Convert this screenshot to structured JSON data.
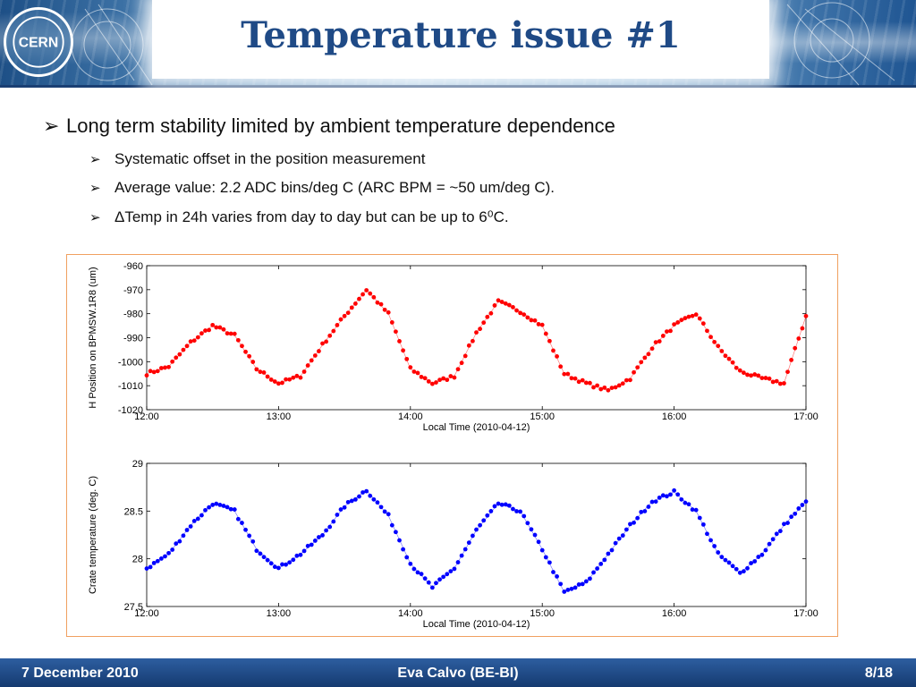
{
  "slide": {
    "title": "Temperature issue #1",
    "logo_text": "CERN",
    "bullets": [
      "Long term stability limited by ambient temperature dependence",
      "Systematic offset in the position measurement",
      "Average value: 2.2 ADC bins/deg C (ARC BPM = ~50 um/deg C).",
      "ΔTemp in 24h varies from day to day but can be up to 6⁰C."
    ],
    "bullet_icon": "arrow-bullet-icon"
  },
  "footer": {
    "date": "7 December 2010",
    "author": "Eva Calvo (BE-BI)",
    "page": "8/18"
  },
  "colors": {
    "title": "#1f4a86",
    "header_blue": "#1d4f86",
    "footer_blue": "#2d5ea0",
    "frame_border": "#f0a060",
    "series_top": "#ff0000",
    "series_bottom": "#0000ff"
  },
  "chart_data": [
    {
      "type": "scatter",
      "ylabel": "H Position on BPMSW.1R8 (um)",
      "xlabel": "Local Time (2010-04-12)",
      "xlim": [
        "12:00",
        "17:00"
      ],
      "ylim": [
        -1020,
        -960
      ],
      "xticks": [
        "12:00",
        "13:00",
        "14:00",
        "15:00",
        "16:00",
        "17:00"
      ],
      "yticks": [
        "-960",
        "-970",
        "-980",
        "-990",
        "-1000",
        "-1010",
        "-1020"
      ],
      "ytick_values": [
        -960,
        -970,
        -980,
        -990,
        -1000,
        -1010,
        -1020
      ],
      "grid": false,
      "series": [
        {
          "color": "#ff0000",
          "x": [
            "12:00",
            "12:10",
            "12:20",
            "12:30",
            "12:40",
            "12:50",
            "13:00",
            "13:10",
            "13:20",
            "13:30",
            "13:40",
            "13:50",
            "14:00",
            "14:10",
            "14:20",
            "14:30",
            "14:40",
            "14:50",
            "15:00",
            "15:10",
            "15:20",
            "15:30",
            "15:40",
            "15:50",
            "16:00",
            "16:10",
            "16:20",
            "16:30",
            "16:40",
            "16:50",
            "17:00"
          ],
          "values": [
            -1005,
            -1002,
            -992,
            -985,
            -989,
            -1003,
            -1009,
            -1006,
            -993,
            -981,
            -970,
            -980,
            -1003,
            -1009,
            -1006,
            -988,
            -975,
            -979,
            -985,
            -1005,
            -1009,
            -1012,
            -1007,
            -994,
            -985,
            -980,
            -994,
            -1004,
            -1007,
            -1009,
            -981
          ]
        }
      ]
    },
    {
      "type": "scatter",
      "ylabel": "Crate temperature (deg. C)",
      "xlabel": "Local Time (2010-04-12)",
      "xlim": [
        "12:00",
        "17:00"
      ],
      "ylim": [
        27.5,
        29
      ],
      "xticks": [
        "12:00",
        "13:00",
        "14:00",
        "15:00",
        "16:00",
        "17:00"
      ],
      "yticks": [
        "29",
        "28.5",
        "28",
        "27.5"
      ],
      "ytick_values": [
        29,
        28.5,
        28,
        27.5
      ],
      "grid": false,
      "series": [
        {
          "color": "#0000ff",
          "x": [
            "12:00",
            "12:10",
            "12:20",
            "12:30",
            "12:40",
            "12:50",
            "13:00",
            "13:10",
            "13:20",
            "13:30",
            "13:40",
            "13:50",
            "14:00",
            "14:10",
            "14:20",
            "14:30",
            "14:40",
            "14:50",
            "15:00",
            "15:10",
            "15:20",
            "15:30",
            "15:40",
            "15:50",
            "16:00",
            "16:10",
            "16:20",
            "16:30",
            "16:40",
            "16:50",
            "17:00"
          ],
          "values": [
            27.9,
            28.05,
            28.35,
            28.58,
            28.5,
            28.1,
            27.9,
            28.05,
            28.25,
            28.55,
            28.72,
            28.45,
            27.95,
            27.7,
            27.9,
            28.3,
            28.58,
            28.5,
            28.1,
            27.65,
            27.75,
            28.05,
            28.35,
            28.6,
            28.7,
            28.5,
            28.05,
            27.85,
            28.05,
            28.35,
            28.6
          ]
        }
      ]
    }
  ]
}
